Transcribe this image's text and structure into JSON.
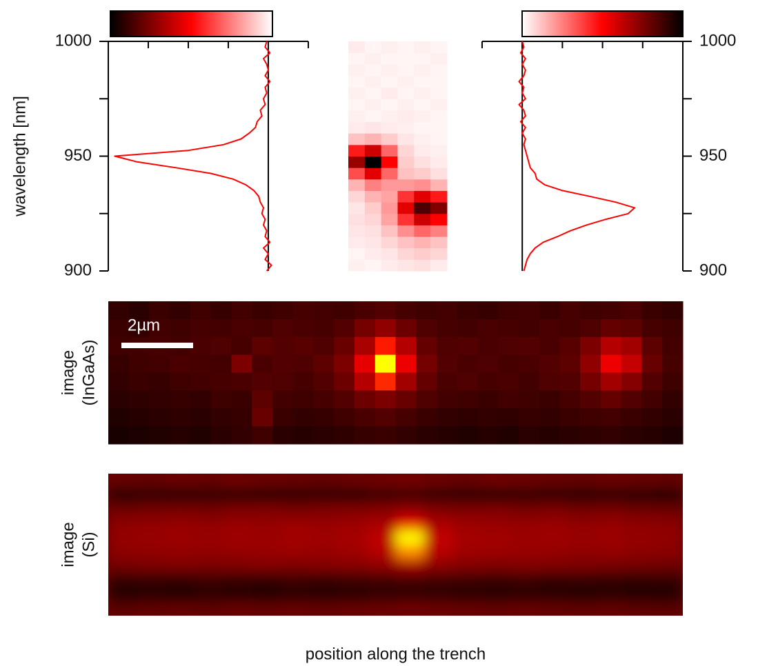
{
  "chart_data": [
    {
      "type": "spectrum",
      "ylabel": "wavelength [nm]",
      "axis_side": "left",
      "y": [
        900,
        902.5,
        905,
        907.5,
        910,
        912.5,
        915,
        917.5,
        920,
        922.5,
        925,
        927.5,
        930,
        932.5,
        935,
        937.5,
        940,
        942.5,
        945,
        947.5,
        950,
        952.5,
        955,
        957.5,
        960,
        962.5,
        965,
        967.5,
        970,
        972.5,
        975,
        977.5,
        980,
        982.5,
        985,
        987.5,
        990,
        992.5,
        995,
        997.5,
        1000
      ],
      "series": [
        {
          "color": "#ff0000",
          "values": [
            0.01,
            -0.02,
            0.02,
            0,
            0.03,
            -0.01,
            0.02,
            0.01,
            0.03,
            0.02,
            0.04,
            0.03,
            0.05,
            0.06,
            0.09,
            0.14,
            0.22,
            0.36,
            0.58,
            0.82,
            0.96,
            0.5,
            0.28,
            0.17,
            0.12,
            0.08,
            0.07,
            0.04,
            0.05,
            0.02,
            0.03,
            0.01,
            0.02,
            -0.01,
            0.02,
            0,
            0.01,
            0.03,
            -0.01,
            0.02,
            0.01
          ]
        }
      ],
      "xlim": [
        1,
        -0.25
      ],
      "xticks": [
        1,
        0.75,
        0.5,
        0.25,
        0,
        -0.25
      ],
      "ylim": [
        900,
        1000
      ],
      "yticks": [
        900,
        950,
        1000
      ],
      "minor_yticks": [
        925,
        975
      ],
      "colorbar": [
        "#000000",
        "#ff0000",
        "#ffffff"
      ]
    },
    {
      "type": "heatmap",
      "ylim": [
        900,
        1000
      ],
      "colormap": [
        "#ffffff",
        "#ff0000",
        "#000000"
      ],
      "z": [
        [
          0.03,
          0.02,
          0.04,
          0.05,
          0.06,
          0.04
        ],
        [
          0.02,
          0.04,
          0.05,
          0.08,
          0.1,
          0.08
        ],
        [
          0.04,
          0.05,
          0.08,
          0.12,
          0.15,
          0.12
        ],
        [
          0.05,
          0.06,
          0.12,
          0.22,
          0.3,
          0.25
        ],
        [
          0.06,
          0.08,
          0.18,
          0.4,
          0.6,
          0.5
        ],
        [
          0.05,
          0.1,
          0.2,
          0.55,
          0.85,
          0.75
        ],
        [
          0.08,
          0.15,
          0.18,
          0.4,
          0.55,
          0.45
        ],
        [
          0.15,
          0.25,
          0.2,
          0.2,
          0.22,
          0.15
        ],
        [
          0.35,
          0.55,
          0.3,
          0.12,
          0.1,
          0.06
        ],
        [
          0.7,
          1.0,
          0.5,
          0.1,
          0.06,
          0.04
        ],
        [
          0.45,
          0.6,
          0.3,
          0.08,
          0.04,
          0.03
        ],
        [
          0.12,
          0.15,
          0.1,
          0.05,
          0.03,
          0.02
        ],
        [
          0.04,
          0.05,
          0.04,
          0.03,
          0.02,
          0.02
        ],
        [
          0.03,
          0.02,
          0.03,
          0.04,
          0.03,
          0.02
        ],
        [
          0.02,
          0.03,
          0.02,
          0.03,
          0.02,
          0.03
        ],
        [
          0.03,
          0.02,
          0.04,
          0.02,
          0.03,
          0.02
        ],
        [
          0.02,
          0.03,
          0.02,
          0.03,
          0.02,
          0.02
        ],
        [
          0.03,
          0.02,
          0.03,
          0.02,
          0.03,
          0.02
        ],
        [
          0.02,
          0.03,
          0.02,
          0.02,
          0.02,
          0.03
        ],
        [
          0.04,
          0.02,
          0.03,
          0.02,
          0.03,
          0.02
        ]
      ]
    },
    {
      "type": "spectrum",
      "axis_side": "right",
      "y": [
        900,
        902.5,
        905,
        907.5,
        910,
        912.5,
        915,
        917.5,
        920,
        922.5,
        925,
        927.5,
        930,
        932.5,
        935,
        937.5,
        940,
        942.5,
        945,
        947.5,
        950,
        952.5,
        955,
        957.5,
        960,
        962.5,
        965,
        967.5,
        970,
        972.5,
        975,
        977.5,
        980,
        982.5,
        985,
        987.5,
        990,
        992.5,
        995,
        997.5,
        1000
      ],
      "series": [
        {
          "color": "#ff0000",
          "values": [
            0.01,
            0.02,
            0.03,
            0.05,
            0.08,
            0.13,
            0.22,
            0.3,
            0.4,
            0.52,
            0.66,
            0.7,
            0.58,
            0.42,
            0.25,
            0.14,
            0.09,
            0.08,
            0.05,
            0.04,
            0.03,
            0.02,
            0.01,
            0.02,
            0,
            0.02,
            -0.01,
            0.02,
            0.01,
            -0.02,
            0.02,
            0,
            0.01,
            -0.02,
            0.01,
            0.02,
            0,
            0.02,
            -0.01,
            0.01,
            0
          ]
        }
      ],
      "xlim": [
        -0.25,
        1
      ],
      "xticks": [
        -0.25,
        0,
        0.25,
        0.5,
        0.75,
        1
      ],
      "ylim": [
        900,
        1000
      ],
      "yticks": [
        900,
        950,
        1000
      ],
      "minor_yticks": [
        925,
        975
      ],
      "colorbar": [
        "#ffffff",
        "#ff0000",
        "#000000"
      ]
    },
    {
      "type": "image",
      "ylabel": [
        "image",
        "(InGaAs)"
      ],
      "scale_bar_label": "2µm",
      "colormap": [
        "#000000",
        "#8b0000",
        "#ff0000",
        "#ffff00"
      ],
      "z": [
        [
          0.12,
          0.1,
          0.14,
          0.12,
          0.15,
          0.13,
          0.16,
          0.14,
          0.15,
          0.17,
          0.16,
          0.15,
          0.18,
          0.2,
          0.17,
          0.15,
          0.16,
          0.14,
          0.13,
          0.15,
          0.16,
          0.14,
          0.17,
          0.15,
          0.16,
          0.18,
          0.14,
          0.12
        ],
        [
          0.14,
          0.12,
          0.16,
          0.15,
          0.17,
          0.16,
          0.18,
          0.17,
          0.19,
          0.18,
          0.17,
          0.2,
          0.28,
          0.35,
          0.26,
          0.19,
          0.17,
          0.16,
          0.18,
          0.17,
          0.16,
          0.18,
          0.17,
          0.19,
          0.24,
          0.22,
          0.17,
          0.15
        ],
        [
          0.15,
          0.16,
          0.17,
          0.16,
          0.18,
          0.19,
          0.17,
          0.22,
          0.2,
          0.21,
          0.19,
          0.25,
          0.42,
          0.7,
          0.45,
          0.24,
          0.19,
          0.2,
          0.18,
          0.19,
          0.2,
          0.18,
          0.21,
          0.3,
          0.45,
          0.4,
          0.22,
          0.16
        ],
        [
          0.13,
          0.15,
          0.16,
          0.18,
          0.17,
          0.16,
          0.3,
          0.18,
          0.2,
          0.19,
          0.22,
          0.3,
          0.6,
          1.0,
          0.62,
          0.28,
          0.2,
          0.18,
          0.19,
          0.17,
          0.18,
          0.2,
          0.22,
          0.35,
          0.62,
          0.5,
          0.25,
          0.17
        ],
        [
          0.12,
          0.14,
          0.13,
          0.15,
          0.16,
          0.17,
          0.18,
          0.2,
          0.19,
          0.17,
          0.2,
          0.26,
          0.45,
          0.72,
          0.4,
          0.24,
          0.18,
          0.19,
          0.17,
          0.18,
          0.16,
          0.19,
          0.2,
          0.28,
          0.4,
          0.32,
          0.2,
          0.15
        ],
        [
          0.1,
          0.11,
          0.12,
          0.13,
          0.12,
          0.15,
          0.14,
          0.22,
          0.16,
          0.15,
          0.17,
          0.2,
          0.26,
          0.3,
          0.25,
          0.19,
          0.16,
          0.15,
          0.14,
          0.16,
          0.15,
          0.14,
          0.17,
          0.2,
          0.24,
          0.2,
          0.16,
          0.12
        ],
        [
          0.08,
          0.09,
          0.1,
          0.11,
          0.1,
          0.12,
          0.13,
          0.25,
          0.14,
          0.12,
          0.13,
          0.15,
          0.18,
          0.2,
          0.17,
          0.14,
          0.12,
          0.11,
          0.12,
          0.11,
          0.13,
          0.12,
          0.14,
          0.15,
          0.16,
          0.14,
          0.12,
          0.1
        ],
        [
          0.06,
          0.07,
          0.08,
          0.09,
          0.08,
          0.1,
          0.12,
          0.15,
          0.1,
          0.09,
          0.1,
          0.11,
          0.13,
          0.14,
          0.12,
          0.1,
          0.09,
          0.08,
          0.09,
          0.08,
          0.1,
          0.09,
          0.1,
          0.11,
          0.12,
          0.1,
          0.09,
          0.07
        ]
      ]
    },
    {
      "type": "image",
      "ylabel": [
        "image",
        "(Si)"
      ],
      "xlabel": "position along the trench",
      "smooth": true,
      "colormap": [
        "#000000",
        "#8b0000",
        "#ff0000",
        "#ffff00"
      ],
      "z": [
        [
          0.25,
          0.24,
          0.26,
          0.25,
          0.27,
          0.26,
          0.25,
          0.24,
          0.26,
          0.27,
          0.28,
          0.26,
          0.25,
          0.27,
          0.26,
          0.25,
          0.24,
          0.26,
          0.25,
          0.24
        ],
        [
          0.1,
          0.12,
          0.11,
          0.13,
          0.12,
          0.11,
          0.12,
          0.13,
          0.12,
          0.14,
          0.15,
          0.13,
          0.12,
          0.11,
          0.13,
          0.12,
          0.11,
          0.12,
          0.1,
          0.09
        ],
        [
          0.26,
          0.27,
          0.28,
          0.27,
          0.29,
          0.3,
          0.28,
          0.29,
          0.3,
          0.31,
          0.33,
          0.3,
          0.29,
          0.3,
          0.28,
          0.29,
          0.27,
          0.28,
          0.26,
          0.25
        ],
        [
          0.34,
          0.35,
          0.36,
          0.35,
          0.37,
          0.36,
          0.38,
          0.37,
          0.38,
          0.42,
          0.6,
          0.42,
          0.38,
          0.37,
          0.36,
          0.37,
          0.35,
          0.36,
          0.34,
          0.33
        ],
        [
          0.36,
          0.37,
          0.38,
          0.37,
          0.39,
          0.38,
          0.4,
          0.39,
          0.41,
          0.48,
          1.0,
          0.5,
          0.41,
          0.4,
          0.38,
          0.39,
          0.37,
          0.38,
          0.36,
          0.35
        ],
        [
          0.34,
          0.35,
          0.36,
          0.35,
          0.36,
          0.37,
          0.38,
          0.37,
          0.39,
          0.45,
          0.85,
          0.46,
          0.39,
          0.38,
          0.37,
          0.36,
          0.35,
          0.36,
          0.34,
          0.33
        ],
        [
          0.28,
          0.29,
          0.3,
          0.29,
          0.3,
          0.31,
          0.3,
          0.31,
          0.32,
          0.34,
          0.4,
          0.33,
          0.31,
          0.3,
          0.31,
          0.3,
          0.29,
          0.28,
          0.27,
          0.26
        ],
        [
          0.12,
          0.13,
          0.12,
          0.14,
          0.13,
          0.12,
          0.14,
          0.13,
          0.14,
          0.15,
          0.16,
          0.15,
          0.14,
          0.13,
          0.14,
          0.12,
          0.13,
          0.12,
          0.11,
          0.12
        ],
        [
          0.08,
          0.09,
          0.08,
          0.1,
          0.09,
          0.08,
          0.1,
          0.09,
          0.1,
          0.11,
          0.12,
          0.11,
          0.1,
          0.09,
          0.1,
          0.09,
          0.08,
          0.09,
          0.08,
          0.08
        ],
        [
          0.22,
          0.23,
          0.24,
          0.23,
          0.25,
          0.24,
          0.25,
          0.24,
          0.25,
          0.26,
          0.27,
          0.26,
          0.25,
          0.24,
          0.25,
          0.24,
          0.23,
          0.24,
          0.22,
          0.21
        ]
      ]
    }
  ]
}
